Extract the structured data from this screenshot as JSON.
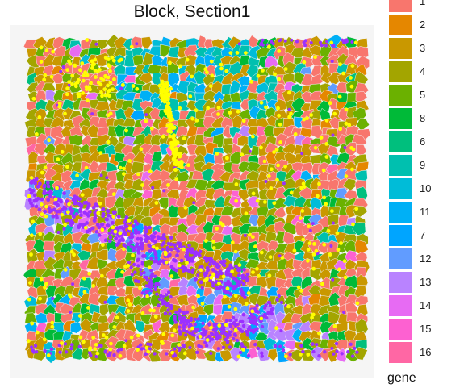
{
  "chart_data": {
    "type": "scatter",
    "title": "Block, Section1",
    "xlabel": "",
    "ylabel": "",
    "legend": {
      "title": "gene",
      "placement": "right",
      "entries": [
        {
          "label": "1",
          "color": "#F8766D"
        },
        {
          "label": "2",
          "color": "#E58700"
        },
        {
          "label": "3",
          "color": "#C99800"
        },
        {
          "label": "4",
          "color": "#A3A500"
        },
        {
          "label": "5",
          "color": "#6BB100"
        },
        {
          "label": "8",
          "color": "#00BA38"
        },
        {
          "label": "6",
          "color": "#00BF7D"
        },
        {
          "label": "9",
          "color": "#00C0AF"
        },
        {
          "label": "10",
          "color": "#00BCD8"
        },
        {
          "label": "11",
          "color": "#00B0F6"
        },
        {
          "label": "7",
          "color": "#00A5FF"
        },
        {
          "label": "12",
          "color": "#619CFF"
        },
        {
          "label": "13",
          "color": "#B983FF"
        },
        {
          "label": "14",
          "color": "#E76BF3"
        },
        {
          "label": "15",
          "color": "#FD61D1"
        },
        {
          "label": "16",
          "color": "#FF67A4"
        }
      ]
    },
    "grid": false,
    "background": "#f5f5f5",
    "marker_colors": {
      "spot": "#FFFF00",
      "band": "#9B30FF"
    }
  }
}
